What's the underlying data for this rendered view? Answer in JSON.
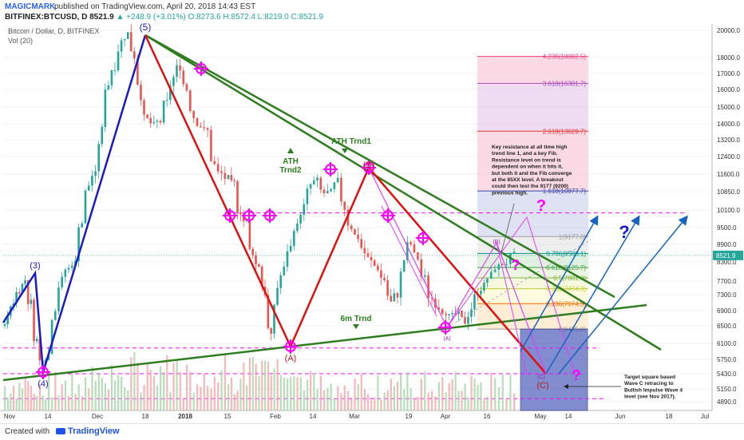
{
  "header": {
    "author": "MAGICMARK",
    "published": "published on TradingView.com, April 20, 2018 14:43 EST",
    "ohlc_symbol": "BITFINEX:BTCUSD, D",
    "ohlc_last": "8521.9",
    "ohlc_change": "▲ +248.9 (+3.01%)",
    "ohlc_values": "O:8273.6 H:8572.4 L:8219.0 C:8521.9"
  },
  "legend": {
    "pair": "Bitcoin / Dollar, D, BITFINEX",
    "volume": "Vol (20)"
  },
  "footer": {
    "created": "Created with",
    "brand": "TradingView"
  },
  "colors": {
    "up": "#26a69a",
    "down": "#ef5350",
    "impulse": "#1a1acc",
    "correction": "#e01010",
    "trend": "#2e7d1e",
    "magenta": "#ff00ff",
    "arrow": "#1565c0"
  },
  "chart_data": {
    "type": "candlestick",
    "title": "Bitcoin / Dollar, D, BITFINEX",
    "last_price": 8521.9,
    "price_ticks": [
      20000,
      18000,
      17000,
      16000,
      15000,
      14000,
      13200,
      12400,
      11600,
      10850,
      10100,
      9500,
      8900,
      8300,
      7700,
      7300,
      6900,
      6500,
      6100,
      5750,
      5430,
      5150,
      4890
    ],
    "time_ticks": [
      "Nov",
      "14",
      "Dec",
      "18",
      "2018",
      "15",
      "Feb",
      "14",
      "Mar",
      "19",
      "Apr",
      "16",
      "May",
      "14",
      "Jun",
      "18",
      "Jul"
    ],
    "close_path": [
      6700,
      7200,
      7500,
      7800,
      7100,
      6200,
      5700,
      5900,
      7100,
      7800,
      8100,
      8300,
      9800,
      11200,
      11600,
      13800,
      16400,
      17600,
      19300,
      19800,
      17800,
      15400,
      14200,
      13900,
      14100,
      15200,
      16800,
      17400,
      15800,
      14300,
      13900,
      13600,
      11900,
      11600,
      11400,
      11100,
      10100,
      9700,
      8600,
      8200,
      7200,
      6100,
      7600,
      8100,
      8800,
      9600,
      10300,
      11200,
      11300,
      10700,
      10800,
      11300,
      10100,
      9500,
      9100,
      8600,
      8300,
      8100,
      7700,
      7000,
      7300,
      8400,
      8900,
      8400,
      7800,
      7200,
      7000,
      6900,
      6700,
      6800,
      6600,
      7000,
      7400,
      7600,
      7900,
      8200,
      8300,
      8521.9
    ],
    "waves": [
      {
        "label": "(3)",
        "price": 7800
      },
      {
        "label": "(4)",
        "price": 5500
      },
      {
        "label": "(5)",
        "price": 19800
      },
      {
        "label": "(A)",
        "price": 6000
      },
      {
        "label": "(B)",
        "price": 11600
      },
      {
        "label": "(A)",
        "price": 6500
      },
      {
        "label": "(B)",
        "price": 8800
      },
      {
        "label": "(C)",
        "price": 5430
      },
      {
        "label": "(C)",
        "price": 5400
      }
    ],
    "fib_levels": [
      {
        "label": "4.236(18082.5)",
        "price": 18082.5
      },
      {
        "label": "3.618(16381.7)",
        "price": 16381.7
      },
      {
        "label": "2.618(13629.7)",
        "price": 13629.7
      },
      {
        "label": "1.618(10877.7)",
        "price": 10877.7
      },
      {
        "label": "1(9177.0)",
        "price": 9177.0
      },
      {
        "label": "0.786(8588.1)",
        "price": 8588.1
      },
      {
        "label": "0.618(8125.7)",
        "price": 8125.7
      },
      {
        "label": "0.5(7801.0)",
        "price": 7801.0
      },
      {
        "label": "0.382(7474.3)",
        "price": 7474.3
      },
      {
        "label": "0.236(7074.5)",
        "price": 7074.5
      },
      {
        "label": "0(6425.0)",
        "price": 6425.0
      }
    ],
    "annotations": {
      "ath1": "ATH Trnd1",
      "ath2_line1": "ATH",
      "ath2_line2": "Trnd2",
      "six_m": "6m Trnd",
      "key_resistance": [
        "Key resistance at all time high",
        "trend line 1, and a key Fib.",
        "Resistance level on trend is",
        "dependent on when it hits it,",
        "but both it and the Fib converge",
        "at the 85XX level. A breakout",
        "could then test the 9177 (9200)",
        "previous high."
      ],
      "target_square": [
        "Target square based",
        "Wave C retracing to",
        "Bullish Impulse Wave 4",
        "level (see Nov 2017)."
      ]
    }
  }
}
